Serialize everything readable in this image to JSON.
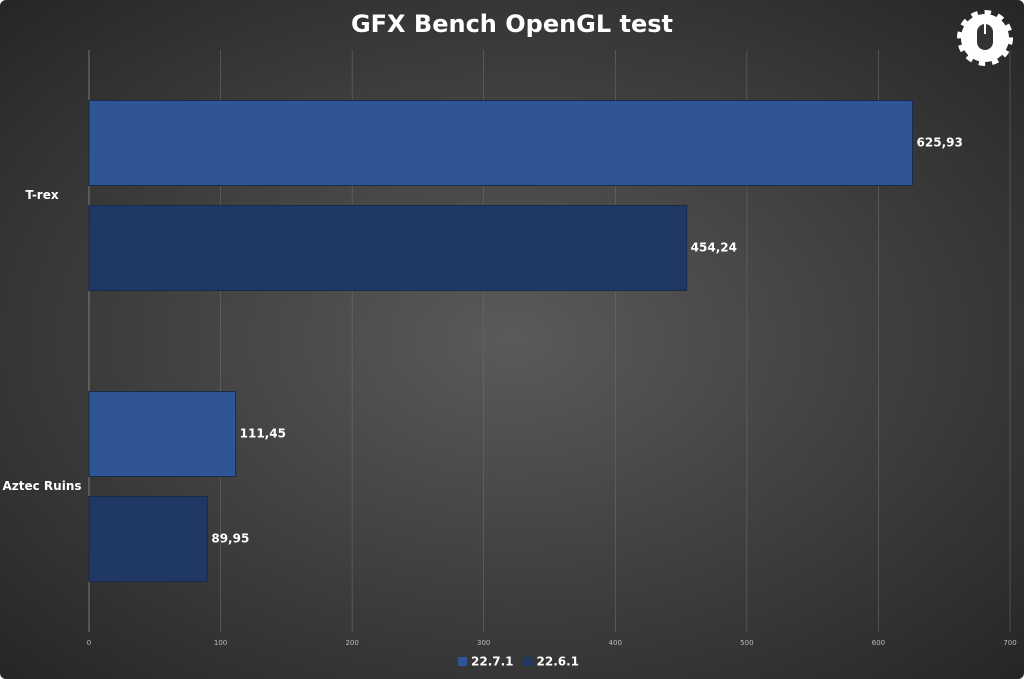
{
  "chart_data": {
    "type": "hbar",
    "title": "GFX Bench OpenGL test",
    "categories": [
      "T-rex",
      "Aztec Ruins"
    ],
    "series": [
      {
        "name": "22.7.1",
        "color": "#2f5597",
        "values": [
          625.93,
          111.45
        ],
        "value_labels": [
          "625,93",
          "111,45"
        ]
      },
      {
        "name": "22.6.1",
        "color": "#203864",
        "values": [
          454.24,
          89.95
        ],
        "value_labels": [
          "454,24",
          "89,95"
        ]
      }
    ],
    "xlim": [
      0,
      700
    ],
    "xticks": [
      0,
      100,
      200,
      300,
      400,
      500,
      600,
      700
    ],
    "grid": true,
    "legend": "bottom"
  }
}
